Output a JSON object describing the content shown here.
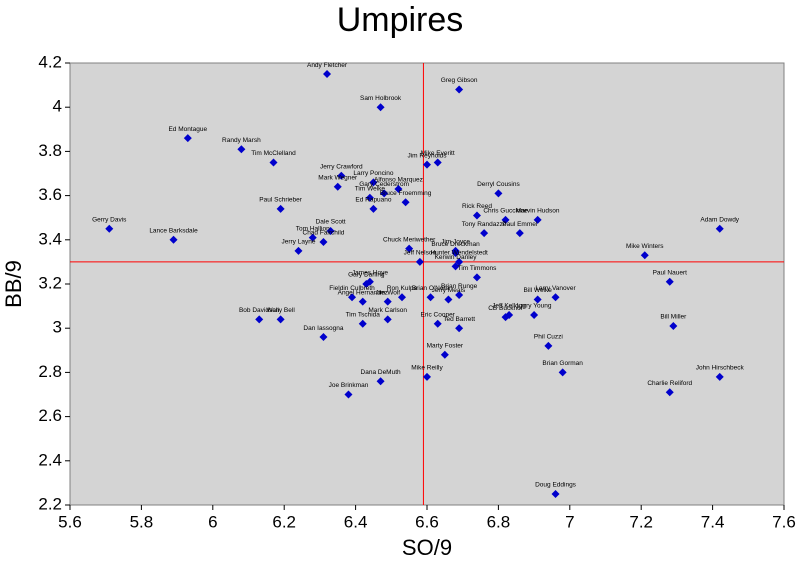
{
  "chart_data": {
    "type": "scatter",
    "title": "Umpires",
    "x_label": "SO/9",
    "y_label": "BB/9",
    "xlim": [
      5.6,
      7.6
    ],
    "ylim": [
      2.2,
      4.2
    ],
    "xticks": [
      5.6,
      5.8,
      6,
      6.2,
      6.4,
      6.6,
      6.8,
      7,
      7.2,
      7.4,
      7.6
    ],
    "yticks": [
      2.2,
      2.4,
      2.6,
      2.8,
      3,
      3.2,
      3.4,
      3.6,
      3.8,
      4,
      4.2
    ],
    "color": "#0000cc",
    "plot_background": "#d4d4d4",
    "ref_color": "#ff0000",
    "ref_x": 6.59,
    "ref_y": 3.3,
    "point_labels": [
      "Andy Fletcher",
      "Greg Gibson",
      "Sam Holbrook",
      "Ed Montague",
      "Randy Marsh",
      "Tim McClelland",
      "Jim Reynolds",
      "Mike Everitt",
      "Jerry Crawford",
      "Mark Wegner",
      "Larry Poncino",
      "Derryl Cousins",
      "Gary Cederstrom",
      "Alfonso Marquez",
      "Bruce Froemming",
      "Tim Welke",
      "Ed Rapuano",
      "Paul Schrieber",
      "Rick Reed",
      "Chris Guccione",
      "Marvin Hudson",
      "Tony Randazzo",
      "Paul Emmel",
      "Adam Dowdy",
      "Gerry Davis",
      "Lance Barksdale",
      "Dale Scott",
      "Tom Hallion",
      "Chad Fairchild",
      "Jerry Layne",
      "Chuck Meriwether",
      "Jim Joyce",
      "Jeff Nelson",
      "Bruce Dreckman",
      "Hunter Wendelstedt",
      "Kerwin Danley",
      "Tim Timmons",
      "Mike Winters",
      "Paul Nauert",
      "James Hoye",
      "Gary Darling",
      "Brian Runge",
      "Fieldin Culbreth",
      "Jim Wolf",
      "Angel Hernandez",
      "Ron Kulpa",
      "Brian O'Nora",
      "Larry Vanover",
      "Bill Welke",
      "Jerry Meals",
      "CB Bucknor",
      "Jeff Kellogg",
      "Larry Young",
      "Bob Davidson",
      "Wally Bell",
      "Mark Carlson",
      "Tim Tschida",
      "Eric Cooper",
      "Ted Barrett",
      "Bill Miller",
      "Dan Iassogna",
      "Phil Cuzzi",
      "Marty Foster",
      "Brian Gorman",
      "Mike Reilly",
      "John Hirschbeck",
      "Dana DeMuth",
      "Charlie Reliford",
      "Joe Brinkman",
      "Doug Eddings"
    ],
    "x": [
      6.32,
      6.69,
      6.47,
      5.93,
      6.08,
      6.17,
      6.6,
      6.63,
      6.36,
      6.35,
      6.45,
      6.8,
      6.48,
      6.52,
      6.54,
      6.44,
      6.45,
      6.19,
      6.74,
      6.82,
      6.91,
      6.76,
      6.86,
      7.42,
      5.71,
      5.89,
      6.33,
      6.28,
      6.31,
      6.24,
      6.55,
      6.68,
      6.58,
      6.68,
      6.69,
      6.68,
      6.74,
      7.21,
      7.28,
      6.44,
      6.43,
      6.69,
      6.39,
      6.49,
      6.42,
      6.53,
      6.61,
      6.96,
      6.91,
      6.66,
      6.82,
      6.83,
      6.9,
      6.13,
      6.19,
      6.49,
      6.42,
      6.63,
      6.69,
      7.29,
      6.31,
      6.94,
      6.65,
      6.98,
      6.6,
      7.42,
      6.47,
      7.28,
      6.38,
      6.96
    ],
    "values": [
      4.15,
      4.08,
      4.0,
      3.86,
      3.81,
      3.75,
      3.74,
      3.75,
      3.69,
      3.64,
      3.66,
      3.61,
      3.61,
      3.63,
      3.57,
      3.59,
      3.54,
      3.54,
      3.51,
      3.49,
      3.49,
      3.43,
      3.43,
      3.45,
      3.45,
      3.4,
      3.44,
      3.41,
      3.39,
      3.35,
      3.36,
      3.35,
      3.3,
      3.34,
      3.3,
      3.28,
      3.23,
      3.33,
      3.21,
      3.21,
      3.2,
      3.15,
      3.14,
      3.12,
      3.12,
      3.14,
      3.14,
      3.14,
      3.13,
      3.13,
      3.05,
      3.06,
      3.06,
      3.04,
      3.04,
      3.04,
      3.02,
      3.02,
      3.0,
      3.01,
      2.96,
      2.92,
      2.88,
      2.8,
      2.78,
      2.78,
      2.76,
      2.71,
      2.7,
      2.25
    ]
  }
}
